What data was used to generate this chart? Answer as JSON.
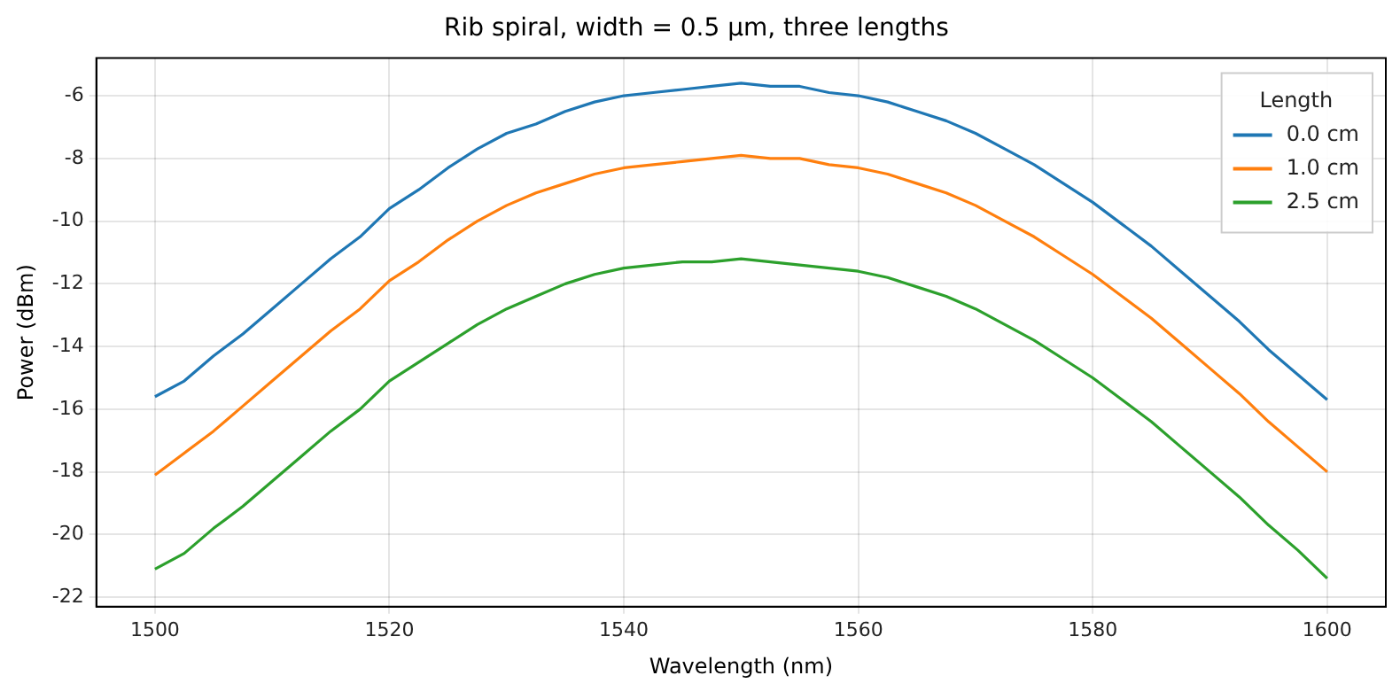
{
  "chart_data": {
    "type": "line",
    "title": "Rib spiral, width = 0.5 µm, three lengths",
    "xlabel": "Wavelength (nm)",
    "ylabel": "Power (dBm)",
    "legend_title": "Length",
    "x": [
      1500,
      1502.5,
      1505,
      1507.5,
      1510,
      1512.5,
      1515,
      1517.5,
      1520,
      1522.5,
      1525,
      1527.5,
      1530,
      1532.5,
      1535,
      1537.5,
      1540,
      1542.5,
      1545,
      1547.5,
      1550,
      1552.5,
      1555,
      1557.5,
      1560,
      1562.5,
      1565,
      1567.5,
      1570,
      1572.5,
      1575,
      1577.5,
      1580,
      1582.5,
      1585,
      1587.5,
      1590,
      1592.5,
      1595,
      1597.5,
      1600
    ],
    "series": [
      {
        "name": "0.0 cm",
        "color": "#1f77b4",
        "values": [
          -15.6,
          -15.1,
          -14.3,
          -13.6,
          -12.8,
          -12.0,
          -11.2,
          -10.5,
          -9.6,
          -9.0,
          -8.3,
          -7.7,
          -7.2,
          -6.9,
          -6.5,
          -6.2,
          -6.0,
          -5.9,
          -5.8,
          -5.7,
          -5.6,
          -5.7,
          -5.7,
          -5.9,
          -6.0,
          -6.2,
          -6.5,
          -6.8,
          -7.2,
          -7.7,
          -8.2,
          -8.8,
          -9.4,
          -10.1,
          -10.8,
          -11.6,
          -12.4,
          -13.2,
          -14.1,
          -14.9,
          -15.7
        ]
      },
      {
        "name": "1.0 cm",
        "color": "#ff7f0e",
        "values": [
          -18.1,
          -17.4,
          -16.7,
          -15.9,
          -15.1,
          -14.3,
          -13.5,
          -12.8,
          -11.9,
          -11.3,
          -10.6,
          -10.0,
          -9.5,
          -9.1,
          -8.8,
          -8.5,
          -8.3,
          -8.2,
          -8.1,
          -8.0,
          -7.9,
          -8.0,
          -8.0,
          -8.2,
          -8.3,
          -8.5,
          -8.8,
          -9.1,
          -9.5,
          -10.0,
          -10.5,
          -11.1,
          -11.7,
          -12.4,
          -13.1,
          -13.9,
          -14.7,
          -15.5,
          -16.4,
          -17.2,
          -18.0
        ]
      },
      {
        "name": "2.5 cm",
        "color": "#2ca02c",
        "values": [
          -21.1,
          -20.6,
          -19.8,
          -19.1,
          -18.3,
          -17.5,
          -16.7,
          -16.0,
          -15.1,
          -14.5,
          -13.9,
          -13.3,
          -12.8,
          -12.4,
          -12.0,
          -11.7,
          -11.5,
          -11.4,
          -11.3,
          -11.3,
          -11.2,
          -11.3,
          -11.4,
          -11.5,
          -11.6,
          -11.8,
          -12.1,
          -12.4,
          -12.8,
          -13.3,
          -13.8,
          -14.4,
          -15.0,
          -15.7,
          -16.4,
          -17.2,
          -18.0,
          -18.8,
          -19.7,
          -20.5,
          -21.4
        ]
      }
    ],
    "xlim": [
      1495,
      1605
    ],
    "xticks": [
      1500,
      1520,
      1540,
      1560,
      1580,
      1600
    ],
    "ylim": [
      -22.3,
      -4.8
    ],
    "yticks": [
      -22,
      -20,
      -18,
      -16,
      -14,
      -12,
      -10,
      -8,
      -6
    ],
    "grid": true,
    "legend": "top right",
    "marker": "none",
    "line_style": "solid"
  }
}
